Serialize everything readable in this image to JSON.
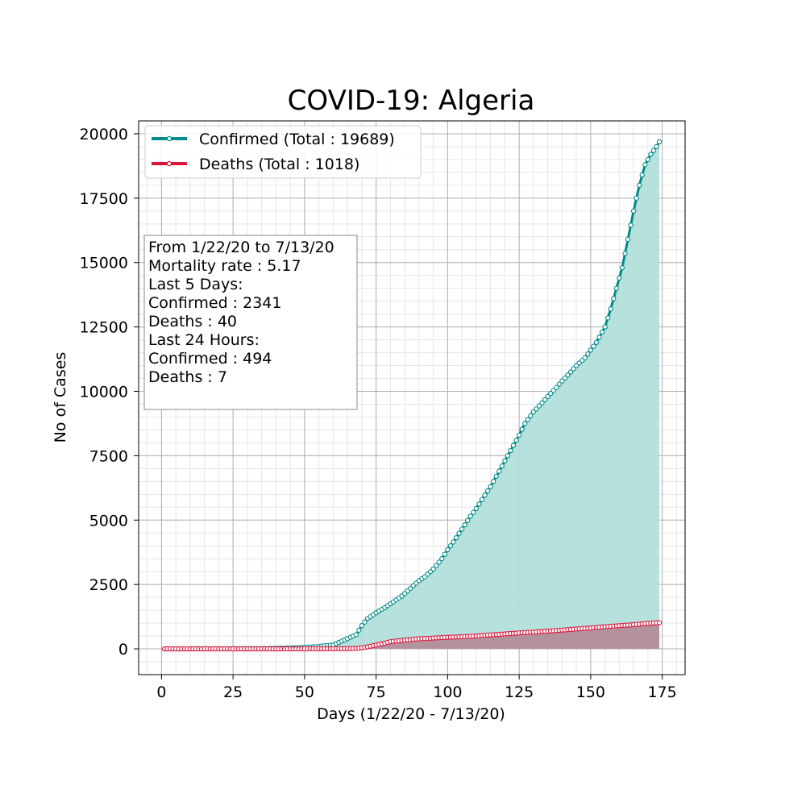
{
  "chart_data": {
    "type": "line",
    "title": "COVID-19: Algeria",
    "xlabel": "Days (1/22/20 - 7/13/20)",
    "ylabel": "No of Cases",
    "xlim": [
      -8,
      183
    ],
    "ylim": [
      -1000,
      20500
    ],
    "xticks": [
      0,
      25,
      50,
      75,
      100,
      125,
      150,
      175
    ],
    "yticks": [
      0,
      2500,
      5000,
      7500,
      10000,
      12500,
      15000,
      17500,
      20000
    ],
    "grid": true,
    "minor_grid": true,
    "legend_position": "upper-left",
    "series": [
      {
        "name": "Confirmed (Total : 19689)",
        "color": "#008b8b",
        "fill": "#b2dfdb",
        "x": [
          1,
          35,
          40,
          45,
          50,
          55,
          57,
          60,
          62,
          64,
          66,
          68,
          70,
          72,
          73,
          75,
          78,
          80,
          82,
          84,
          86,
          88,
          90,
          92,
          95,
          98,
          100,
          102,
          105,
          108,
          110,
          112,
          115,
          118,
          120,
          122,
          125,
          127,
          130,
          133,
          135,
          138,
          140,
          143,
          145,
          148,
          150,
          152,
          155,
          157,
          159,
          161,
          163,
          165,
          167,
          169,
          171,
          173,
          174
        ],
        "values": [
          0,
          10,
          20,
          30,
          60,
          90,
          120,
          150,
          250,
          350,
          450,
          550,
          900,
          1180,
          1250,
          1400,
          1600,
          1750,
          1900,
          2050,
          2250,
          2450,
          2650,
          2800,
          3100,
          3500,
          3850,
          4150,
          4650,
          5150,
          5450,
          5800,
          6300,
          6900,
          7300,
          7700,
          8300,
          8750,
          9200,
          9550,
          9800,
          10150,
          10400,
          10750,
          11000,
          11300,
          11600,
          11900,
          12500,
          13200,
          14000,
          14800,
          15900,
          17000,
          18000,
          18800,
          19200,
          19500,
          19689
        ]
      },
      {
        "name": "Deaths (Total : 1018)",
        "color": "#dc143c",
        "fill": "#b48a96",
        "x": [
          1,
          40,
          50,
          60,
          65,
          68,
          70,
          72,
          75,
          78,
          80,
          85,
          90,
          95,
          100,
          105,
          110,
          115,
          120,
          125,
          130,
          135,
          140,
          145,
          150,
          155,
          160,
          165,
          170,
          174
        ],
        "values": [
          0,
          0,
          2,
          5,
          10,
          20,
          40,
          80,
          150,
          220,
          280,
          340,
          390,
          420,
          450,
          470,
          500,
          540,
          580,
          620,
          650,
          690,
          730,
          770,
          810,
          860,
          900,
          940,
          990,
          1018
        ]
      }
    ],
    "annotation": [
      "From 1/22/20 to 7/13/20",
      "Mortality rate : 5.17",
      "Last 5 Days:",
      "Confirmed : 2341",
      "Deaths : 40",
      "Last 24 Hours:",
      "Confirmed : 494",
      "Deaths : 7"
    ]
  }
}
